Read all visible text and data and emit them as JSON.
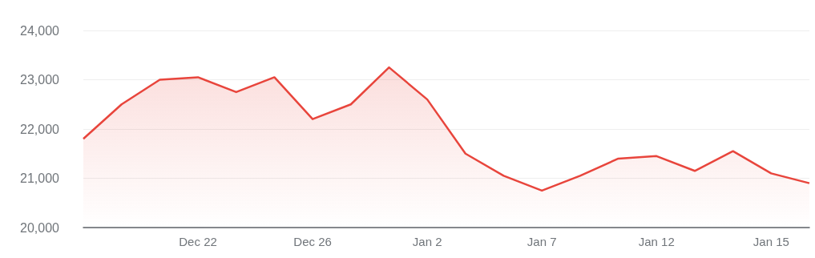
{
  "chart_data": {
    "type": "area",
    "categories": [
      null,
      null,
      null,
      "Dec 22",
      null,
      null,
      "Dec 26",
      null,
      null,
      "Jan 2",
      null,
      null,
      "Jan 7",
      null,
      null,
      "Jan 12",
      null,
      null,
      "Jan 15",
      null
    ],
    "series": [
      {
        "color": "#e8453c",
        "values": [
          21800,
          22500,
          23000,
          23050,
          22750,
          23050,
          22200,
          22500,
          23250,
          22600,
          21500,
          21050,
          20750,
          21050,
          21400,
          21450,
          21150,
          21550,
          21100,
          20900
        ]
      }
    ],
    "ylim": [
      20000,
      24000
    ],
    "yticks": [
      {
        "value": 20000,
        "label": "20,000"
      },
      {
        "value": 21000,
        "label": "21,000"
      },
      {
        "value": 22000,
        "label": "22,000"
      },
      {
        "value": 23000,
        "label": "23,000"
      },
      {
        "value": 24000,
        "label": "24,000"
      }
    ],
    "grid": "y"
  }
}
